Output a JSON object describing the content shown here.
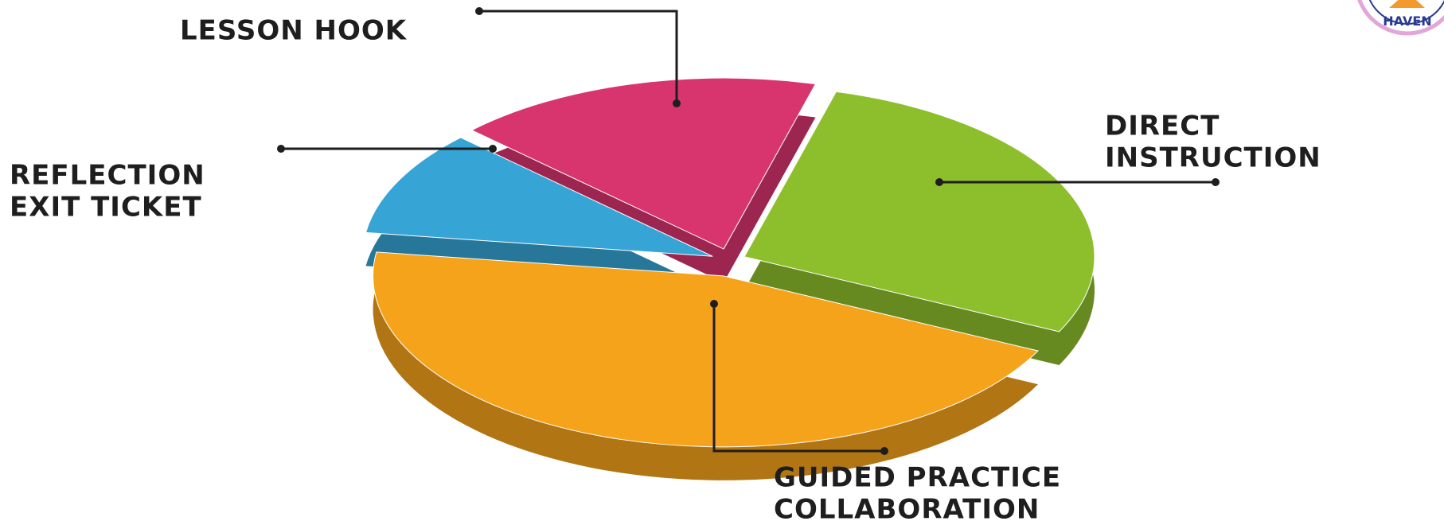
{
  "chart_data": {
    "type": "pie3d",
    "categories": [
      [
        "LESSON HOOK"
      ],
      [
        "DIRECT",
        "INSTRUCTION"
      ],
      [
        "GUIDED PRACTICE",
        "COLLABORATION"
      ],
      [
        "REFLECTION",
        "EXIT TICKET"
      ]
    ],
    "values": [
      17,
      28,
      45,
      10
    ],
    "colors": [
      "#d8356f",
      "#8dbf2c",
      "#f6a31c",
      "#36a5d6"
    ]
  },
  "logo": {
    "text": "HAVEN"
  }
}
